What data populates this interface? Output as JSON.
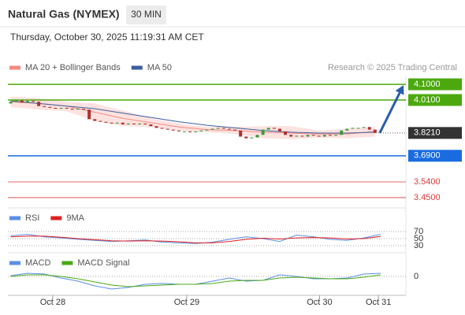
{
  "header": {
    "title": "Natural Gas (NYMEX)",
    "interval": "30 MIN",
    "timestamp": "Thursday, October 30, 2025 11:19:31 AM CET"
  },
  "chart_data": [
    {
      "type": "candlestick",
      "legend": [
        {
          "name": "MA 20 + Bollinger Bands",
          "color": "#f28b82"
        },
        {
          "name": "MA 50",
          "color": "#3d5f9e"
        }
      ],
      "credit": "Research © 2025 Trading Central",
      "xlim": [
        -0.5,
        70.5
      ],
      "ylim": [
        3.4,
        4.15
      ],
      "xticks": [
        {
          "value": 7.5,
          "label": "Oct 28"
        },
        {
          "value": 31.4,
          "label": "Oct 29"
        },
        {
          "value": 55.1,
          "label": "Oct 30"
        },
        {
          "value": 65.6,
          "label": "Oct 31"
        }
      ],
      "up_color": "#3d9a3d",
      "down_color": "#b03030",
      "open": [
        3.99,
        4.0,
        4.01,
        3.995,
        4.005,
        4.0,
        3.975,
        3.97,
        3.965,
        3.96,
        3.965,
        3.96,
        3.955,
        3.96,
        3.955,
        3.9,
        3.89,
        3.885,
        3.88,
        3.875,
        3.88,
        3.87,
        3.875,
        3.87,
        3.875,
        3.87,
        3.86,
        3.85,
        3.845,
        3.84,
        3.835,
        3.83,
        3.83,
        3.825,
        3.83,
        3.835,
        3.84,
        3.845,
        3.85,
        3.845,
        3.84,
        3.835,
        3.8,
        3.79,
        3.795,
        3.81,
        3.84,
        3.85,
        3.845,
        3.83,
        3.81,
        3.8,
        3.805,
        3.8,
        3.81,
        3.805,
        3.8,
        3.81,
        3.805,
        3.81,
        3.835,
        3.845,
        3.85,
        3.85,
        3.855,
        3.84
      ],
      "close": [
        4.0,
        4.01,
        3.995,
        4.005,
        4.0,
        3.975,
        3.97,
        3.965,
        3.96,
        3.965,
        3.96,
        3.955,
        3.96,
        3.955,
        3.9,
        3.89,
        3.885,
        3.88,
        3.875,
        3.88,
        3.87,
        3.875,
        3.87,
        3.875,
        3.87,
        3.86,
        3.85,
        3.845,
        3.84,
        3.835,
        3.83,
        3.83,
        3.825,
        3.83,
        3.835,
        3.84,
        3.845,
        3.85,
        3.845,
        3.84,
        3.835,
        3.8,
        3.79,
        3.795,
        3.81,
        3.84,
        3.85,
        3.845,
        3.83,
        3.81,
        3.8,
        3.805,
        3.8,
        3.81,
        3.805,
        3.8,
        3.81,
        3.805,
        3.81,
        3.835,
        3.845,
        3.85,
        3.85,
        3.855,
        3.84,
        3.821
      ],
      "overlay": {
        "x": [
          0,
          5,
          10,
          15,
          20,
          25,
          30,
          35,
          40,
          45,
          50,
          55,
          60,
          65
        ],
        "ma20": [
          4.0,
          3.99,
          3.975,
          3.94,
          3.905,
          3.88,
          3.855,
          3.84,
          3.835,
          3.825,
          3.82,
          3.815,
          3.815,
          3.83
        ],
        "upper": [
          4.03,
          4.02,
          4.0,
          3.99,
          3.95,
          3.905,
          3.875,
          3.855,
          3.855,
          3.86,
          3.86,
          3.835,
          3.845,
          3.855
        ],
        "lower": [
          3.97,
          3.955,
          3.945,
          3.89,
          3.86,
          3.855,
          3.835,
          3.825,
          3.815,
          3.79,
          3.785,
          3.795,
          3.79,
          3.8
        ],
        "ma50": [
          4.005,
          3.99,
          3.975,
          3.96,
          3.935,
          3.91,
          3.885,
          3.865,
          3.85,
          3.835,
          3.825,
          3.82,
          3.82,
          3.825
        ]
      },
      "levels": [
        {
          "value": 4.1,
          "label": "4.1000",
          "color": "#4ca80f",
          "style": "boxed"
        },
        {
          "value": 4.01,
          "label": "4.0100",
          "color": "#4ca80f",
          "style": "boxed"
        },
        {
          "value": 3.821,
          "label": "3.8210",
          "color": "#333333",
          "style": "current"
        },
        {
          "value": 3.69,
          "label": "3.6900",
          "color": "#1a6be0",
          "style": "boxed"
        },
        {
          "value": 3.54,
          "label": "3.5400",
          "color": "#e03a3a",
          "style": "plain"
        },
        {
          "value": 3.45,
          "label": "3.4500",
          "color": "#e03a3a",
          "style": "plain"
        }
      ],
      "arrow_color": "#2a5caa"
    },
    {
      "type": "line",
      "xlim": [
        -0.5,
        70.5
      ],
      "ylim": [
        20,
        80
      ],
      "yticks": [
        30,
        50,
        70
      ],
      "x": [
        0,
        3,
        6,
        9,
        12,
        15,
        18,
        21,
        24,
        27,
        30,
        33,
        36,
        39,
        42,
        45,
        48,
        51,
        54,
        57,
        60,
        63,
        66
      ],
      "series": [
        {
          "name": "RSI",
          "color": "#5b8fe8",
          "values": [
            58,
            62,
            55,
            52,
            48,
            45,
            42,
            44,
            46,
            40,
            38,
            36,
            40,
            48,
            55,
            50,
            42,
            60,
            55,
            48,
            45,
            52,
            62
          ]
        },
        {
          "name": "9MA",
          "color": "#e02020",
          "values": [
            55,
            57,
            57,
            54,
            50,
            47,
            44,
            43,
            44,
            43,
            41,
            38,
            38,
            42,
            48,
            51,
            49,
            52,
            53,
            52,
            49,
            50,
            56
          ]
        }
      ]
    },
    {
      "type": "line",
      "xlim": [
        -0.5,
        70.5
      ],
      "ylim": [
        -0.022,
        0.022
      ],
      "yticks": [
        0
      ],
      "x": [
        0,
        3,
        6,
        9,
        12,
        15,
        18,
        21,
        24,
        27,
        30,
        33,
        36,
        39,
        42,
        45,
        48,
        51,
        54,
        57,
        60,
        63,
        66
      ],
      "series": [
        {
          "name": "MACD",
          "color": "#5b8fe8",
          "values": [
            0.001,
            0.004,
            0.003,
            -0.002,
            -0.006,
            -0.012,
            -0.016,
            -0.014,
            -0.01,
            -0.009,
            -0.01,
            -0.01,
            -0.006,
            -0.002,
            -0.006,
            -0.005,
            0.002,
            0.0,
            -0.003,
            -0.003,
            -0.002,
            0.003,
            0.004
          ]
        },
        {
          "name": "MACD Signal",
          "color": "#4caa14",
          "values": [
            0.0,
            0.002,
            0.002,
            0.0,
            -0.003,
            -0.007,
            -0.011,
            -0.013,
            -0.012,
            -0.011,
            -0.01,
            -0.01,
            -0.009,
            -0.006,
            -0.005,
            -0.005,
            -0.002,
            -0.001,
            -0.002,
            -0.003,
            -0.003,
            -0.001,
            0.002
          ]
        }
      ]
    }
  ]
}
